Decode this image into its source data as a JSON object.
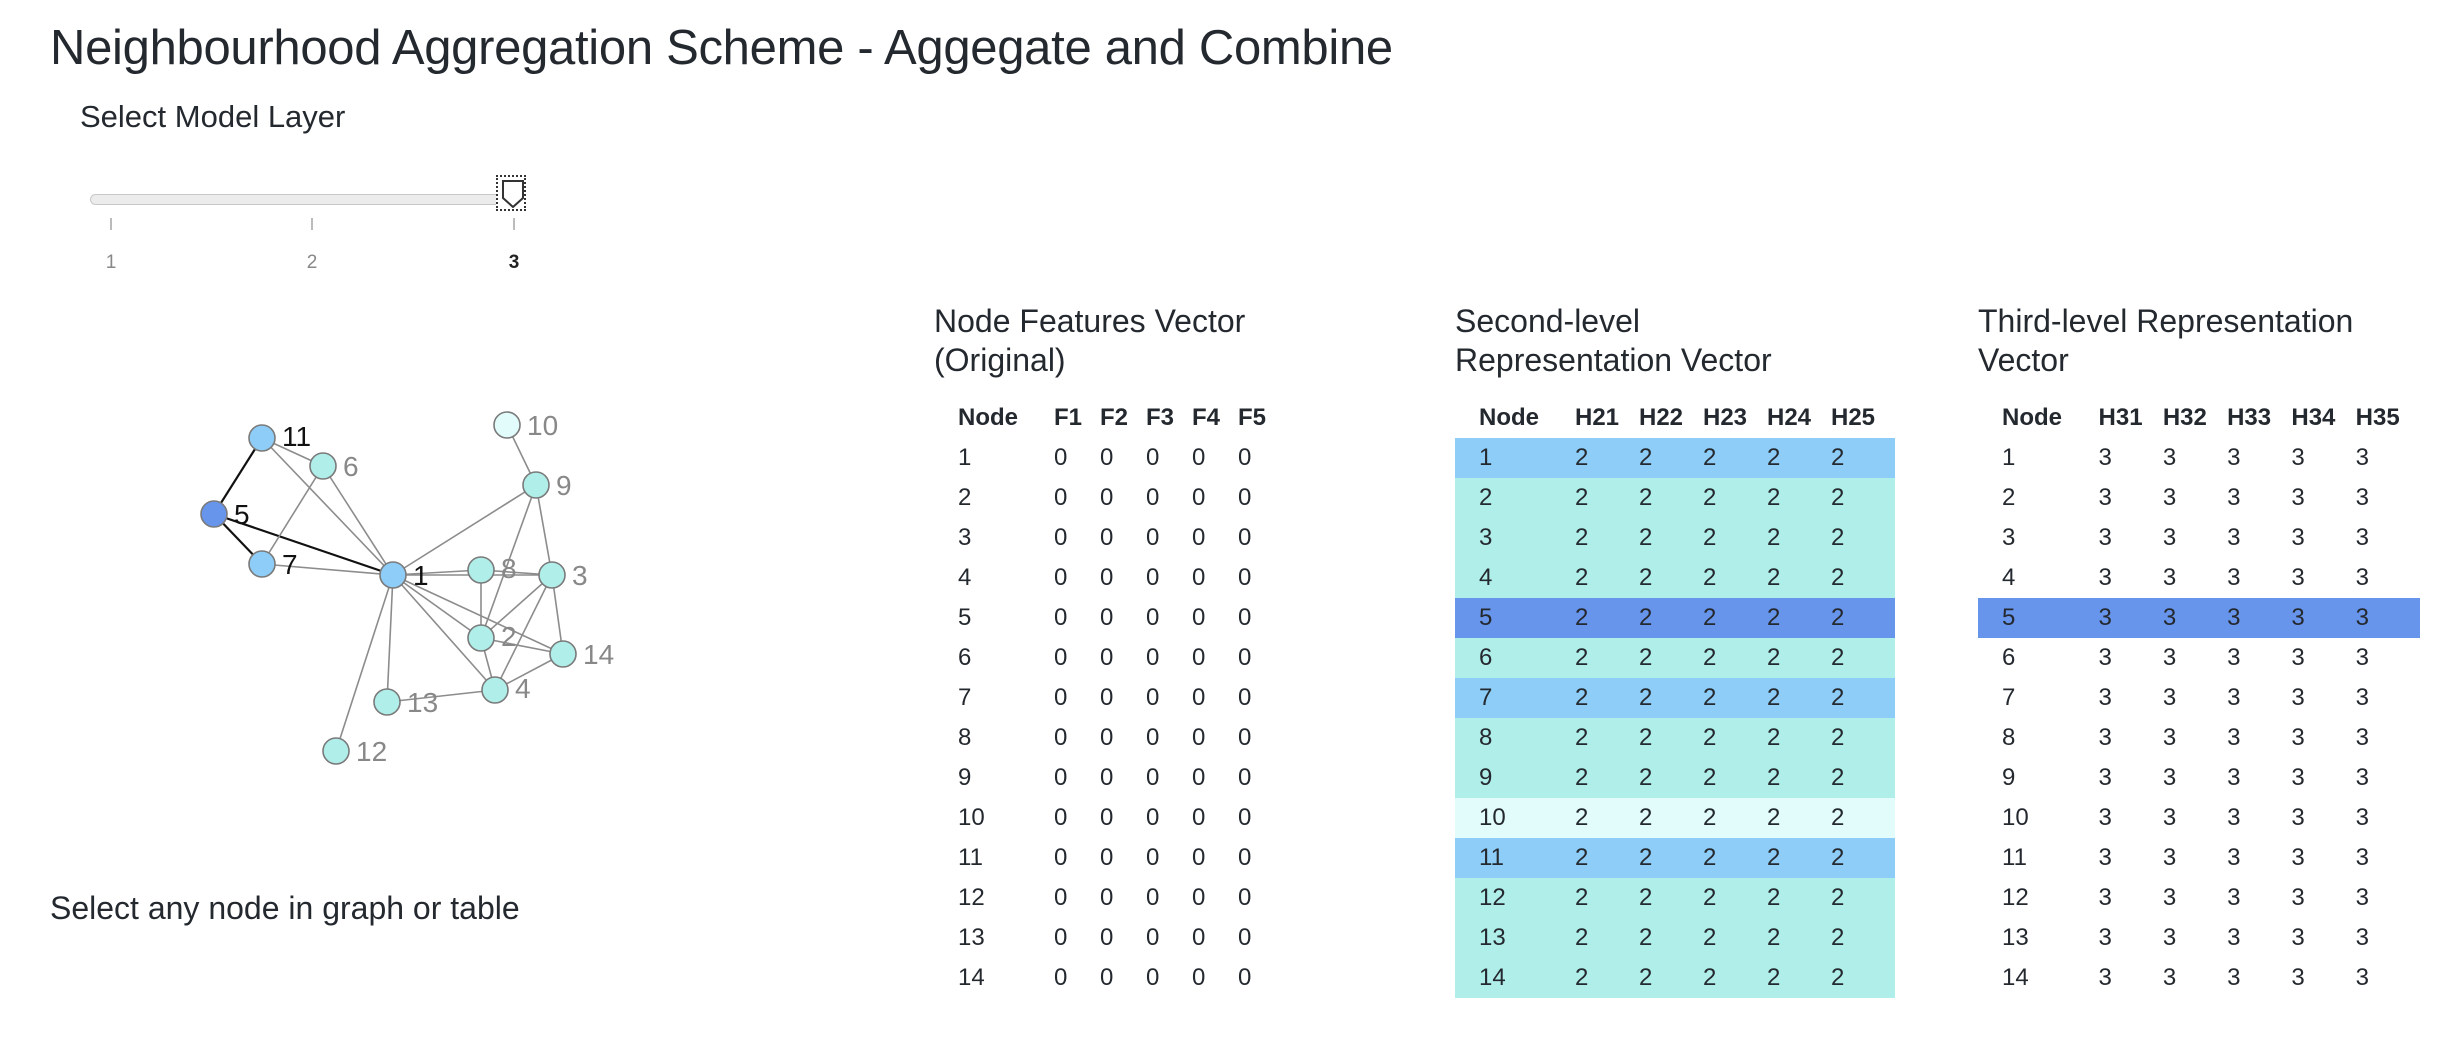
{
  "title": "Neighbourhood Aggregation Scheme - Aggegate and Combine",
  "slider": {
    "label": "Select Model Layer",
    "ticks": [
      "1",
      "2",
      "3"
    ],
    "value": 3,
    "handle_icon": "pentagon-handle-icon"
  },
  "hint": "Select any node in graph or table",
  "colors": {
    "selected": "#6895ec",
    "neighbor": "#8ecdf7",
    "second_hop": "#b0eeea",
    "far": "#e1fcfa",
    "edge": "#8c8c8c",
    "edge_highlight": "#111111"
  },
  "graph": {
    "selected_node": "5",
    "nodes": [
      {
        "id": "1",
        "label": "1",
        "level": "neighbor"
      },
      {
        "id": "2",
        "label": "2",
        "level": "second_hop"
      },
      {
        "id": "3",
        "label": "3",
        "level": "second_hop"
      },
      {
        "id": "4",
        "label": "4",
        "level": "second_hop"
      },
      {
        "id": "5",
        "label": "5",
        "level": "selected"
      },
      {
        "id": "6",
        "label": "6",
        "level": "second_hop"
      },
      {
        "id": "7",
        "label": "7",
        "level": "neighbor"
      },
      {
        "id": "8",
        "label": "8",
        "level": "second_hop"
      },
      {
        "id": "9",
        "label": "9",
        "level": "second_hop"
      },
      {
        "id": "10",
        "label": "10",
        "level": "far"
      },
      {
        "id": "11",
        "label": "11",
        "level": "neighbor"
      },
      {
        "id": "12",
        "label": "12",
        "level": "second_hop"
      },
      {
        "id": "13",
        "label": "13",
        "level": "second_hop"
      },
      {
        "id": "14",
        "label": "14",
        "level": "second_hop"
      }
    ],
    "edges": [
      [
        "5",
        "11"
      ],
      [
        "5",
        "7"
      ],
      [
        "5",
        "1"
      ],
      [
        "11",
        "6"
      ],
      [
        "11",
        "1"
      ],
      [
        "6",
        "1"
      ],
      [
        "6",
        "7"
      ],
      [
        "7",
        "1"
      ],
      [
        "1",
        "9"
      ],
      [
        "1",
        "8"
      ],
      [
        "1",
        "3"
      ],
      [
        "1",
        "2"
      ],
      [
        "1",
        "4"
      ],
      [
        "1",
        "13"
      ],
      [
        "1",
        "12"
      ],
      [
        "1",
        "14"
      ],
      [
        "10",
        "9"
      ],
      [
        "9",
        "3"
      ],
      [
        "9",
        "2"
      ],
      [
        "8",
        "3"
      ],
      [
        "8",
        "2"
      ],
      [
        "3",
        "2"
      ],
      [
        "3",
        "14"
      ],
      [
        "3",
        "4"
      ],
      [
        "2",
        "14"
      ],
      [
        "2",
        "4"
      ],
      [
        "4",
        "14"
      ],
      [
        "4",
        "13"
      ]
    ]
  },
  "tables": {
    "original": {
      "title": "Node Features Vector (Original)",
      "headers": [
        "Node",
        "F1",
        "F2",
        "F3",
        "F4",
        "F5"
      ],
      "rows": [
        [
          "1",
          "0",
          "0",
          "0",
          "0",
          "0"
        ],
        [
          "2",
          "0",
          "0",
          "0",
          "0",
          "0"
        ],
        [
          "3",
          "0",
          "0",
          "0",
          "0",
          "0"
        ],
        [
          "4",
          "0",
          "0",
          "0",
          "0",
          "0"
        ],
        [
          "5",
          "0",
          "0",
          "0",
          "0",
          "0"
        ],
        [
          "6",
          "0",
          "0",
          "0",
          "0",
          "0"
        ],
        [
          "7",
          "0",
          "0",
          "0",
          "0",
          "0"
        ],
        [
          "8",
          "0",
          "0",
          "0",
          "0",
          "0"
        ],
        [
          "9",
          "0",
          "0",
          "0",
          "0",
          "0"
        ],
        [
          "10",
          "0",
          "0",
          "0",
          "0",
          "0"
        ],
        [
          "11",
          "0",
          "0",
          "0",
          "0",
          "0"
        ],
        [
          "12",
          "0",
          "0",
          "0",
          "0",
          "0"
        ],
        [
          "13",
          "0",
          "0",
          "0",
          "0",
          "0"
        ],
        [
          "14",
          "0",
          "0",
          "0",
          "0",
          "0"
        ]
      ]
    },
    "second": {
      "title": "Second-level Representation Vector",
      "headers": [
        "Node",
        "H21",
        "H22",
        "H23",
        "H24",
        "H25"
      ],
      "rows": [
        [
          "1",
          "2",
          "2",
          "2",
          "2",
          "2"
        ],
        [
          "2",
          "2",
          "2",
          "2",
          "2",
          "2"
        ],
        [
          "3",
          "2",
          "2",
          "2",
          "2",
          "2"
        ],
        [
          "4",
          "2",
          "2",
          "2",
          "2",
          "2"
        ],
        [
          "5",
          "2",
          "2",
          "2",
          "2",
          "2"
        ],
        [
          "6",
          "2",
          "2",
          "2",
          "2",
          "2"
        ],
        [
          "7",
          "2",
          "2",
          "2",
          "2",
          "2"
        ],
        [
          "8",
          "2",
          "2",
          "2",
          "2",
          "2"
        ],
        [
          "9",
          "2",
          "2",
          "2",
          "2",
          "2"
        ],
        [
          "10",
          "2",
          "2",
          "2",
          "2",
          "2"
        ],
        [
          "11",
          "2",
          "2",
          "2",
          "2",
          "2"
        ],
        [
          "12",
          "2",
          "2",
          "2",
          "2",
          "2"
        ],
        [
          "13",
          "2",
          "2",
          "2",
          "2",
          "2"
        ],
        [
          "14",
          "2",
          "2",
          "2",
          "2",
          "2"
        ]
      ]
    },
    "third": {
      "title": "Third-level Representation Vector",
      "headers": [
        "Node",
        "H31",
        "H32",
        "H33",
        "H34",
        "H35"
      ],
      "rows": [
        [
          "1",
          "3",
          "3",
          "3",
          "3",
          "3"
        ],
        [
          "2",
          "3",
          "3",
          "3",
          "3",
          "3"
        ],
        [
          "3",
          "3",
          "3",
          "3",
          "3",
          "3"
        ],
        [
          "4",
          "3",
          "3",
          "3",
          "3",
          "3"
        ],
        [
          "5",
          "3",
          "3",
          "3",
          "3",
          "3"
        ],
        [
          "6",
          "3",
          "3",
          "3",
          "3",
          "3"
        ],
        [
          "7",
          "3",
          "3",
          "3",
          "3",
          "3"
        ],
        [
          "8",
          "3",
          "3",
          "3",
          "3",
          "3"
        ],
        [
          "9",
          "3",
          "3",
          "3",
          "3",
          "3"
        ],
        [
          "10",
          "3",
          "3",
          "3",
          "3",
          "3"
        ],
        [
          "11",
          "3",
          "3",
          "3",
          "3",
          "3"
        ],
        [
          "12",
          "3",
          "3",
          "3",
          "3",
          "3"
        ],
        [
          "13",
          "3",
          "3",
          "3",
          "3",
          "3"
        ],
        [
          "14",
          "3",
          "3",
          "3",
          "3",
          "3"
        ]
      ]
    }
  }
}
